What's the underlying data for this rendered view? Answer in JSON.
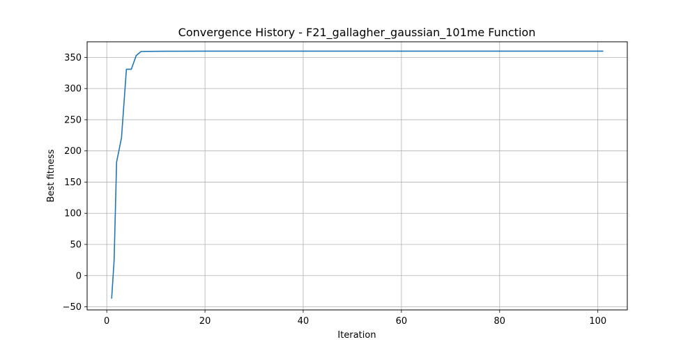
{
  "chart_data": {
    "type": "line",
    "title": "Convergence History - F21_gallagher_gaussian_101me Function",
    "xlabel": "Iteration",
    "ylabel": "Best fitness",
    "xlim": [
      -4,
      106
    ],
    "ylim": [
      -55,
      375
    ],
    "xticks": [
      0,
      20,
      40,
      60,
      80,
      100
    ],
    "xtick_labels": [
      "0",
      "20",
      "40",
      "60",
      "80",
      "100"
    ],
    "yticks": [
      -50,
      0,
      50,
      100,
      150,
      200,
      250,
      300,
      350
    ],
    "ytick_labels": [
      "−50",
      "0",
      "50",
      "100",
      "150",
      "200",
      "250",
      "300",
      "350"
    ],
    "grid": true,
    "legend": false,
    "series": [
      {
        "color": "#1f77b4",
        "x": [
          1,
          1.5,
          2,
          3,
          4,
          5,
          6,
          7,
          8,
          10,
          12,
          15,
          20,
          30,
          40,
          50,
          60,
          70,
          80,
          90,
          101
        ],
        "y": [
          -36,
          25,
          182,
          221,
          331,
          331,
          353,
          359.5,
          359.6,
          359.7,
          359.8,
          359.9,
          360,
          360,
          360,
          360,
          360,
          360,
          360,
          360,
          360
        ]
      }
    ]
  }
}
